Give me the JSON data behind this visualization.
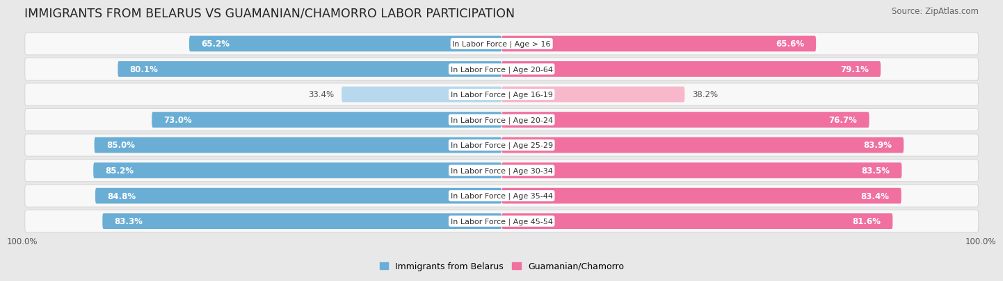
{
  "title": "IMMIGRANTS FROM BELARUS VS GUAMANIAN/CHAMORRO LABOR PARTICIPATION",
  "source": "Source: ZipAtlas.com",
  "categories": [
    "In Labor Force | Age > 16",
    "In Labor Force | Age 20-64",
    "In Labor Force | Age 16-19",
    "In Labor Force | Age 20-24",
    "In Labor Force | Age 25-29",
    "In Labor Force | Age 30-34",
    "In Labor Force | Age 35-44",
    "In Labor Force | Age 45-54"
  ],
  "belarus_values": [
    65.2,
    80.1,
    33.4,
    73.0,
    85.0,
    85.2,
    84.8,
    83.3
  ],
  "guamanian_values": [
    65.6,
    79.1,
    38.2,
    76.7,
    83.9,
    83.5,
    83.4,
    81.6
  ],
  "belarus_color_high": "#6aaed6",
  "belarus_color_low": "#b8d9ed",
  "guamanian_color_high": "#f070a0",
  "guamanian_color_low": "#f8b8cc",
  "background_color": "#e8e8e8",
  "row_bg_color": "#f8f8f8",
  "row_border_color": "#d8d8d8",
  "legend_belarus": "Immigrants from Belarus",
  "legend_guamanian": "Guamanian/Chamorro",
  "axis_label_left": "100.0%",
  "axis_label_right": "100.0%",
  "max_value": 100.0,
  "low_threshold": 50.0,
  "title_fontsize": 12.5,
  "bar_label_fontsize": 8.5,
  "category_fontsize": 8.0,
  "legend_fontsize": 9,
  "source_fontsize": 8.5
}
